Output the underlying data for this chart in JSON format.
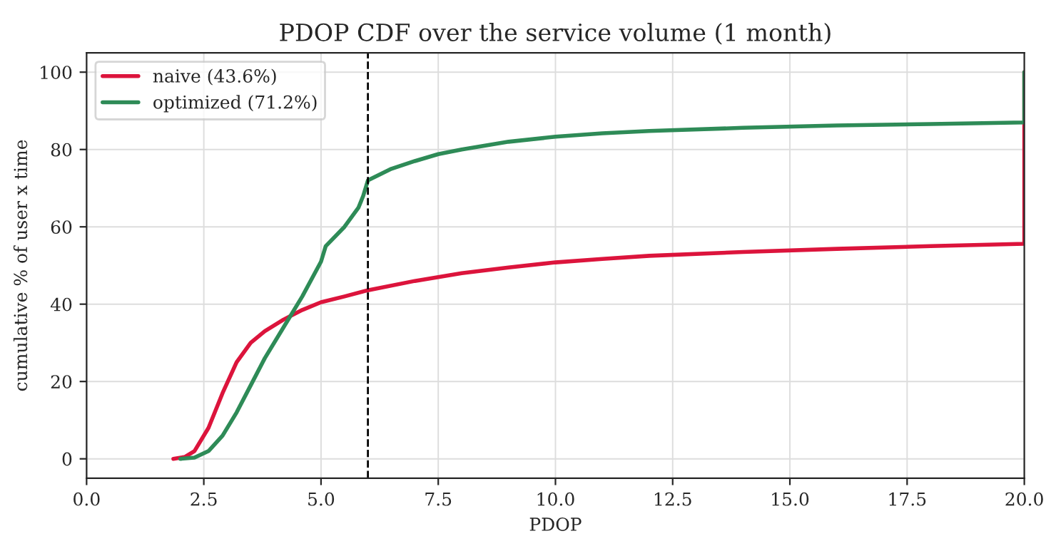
{
  "chart_data": {
    "type": "line",
    "title": "PDOP CDF over the service volume (1 month)",
    "xlabel": "PDOP",
    "ylabel": "cumulative % of user x time",
    "series": [
      {
        "name": "naive (43.6%)",
        "color": "#dc143c",
        "x": [
          1.85,
          2.1,
          2.3,
          2.6,
          2.9,
          3.2,
          3.5,
          3.8,
          4.2,
          4.6,
          5.0,
          5.5,
          6.0,
          7,
          8,
          9,
          10,
          11,
          12,
          14,
          16,
          18,
          20,
          20
        ],
        "values": [
          0,
          0.5,
          2,
          8,
          17,
          25,
          30,
          33,
          36,
          38.5,
          40.5,
          42,
          43.6,
          46,
          48,
          49.5,
          50.8,
          51.7,
          52.5,
          53.5,
          54.3,
          55,
          55.6,
          100
        ]
      },
      {
        "name": "optimized (71.2%)",
        "color": "#2e8b57",
        "x": [
          2.0,
          2.3,
          2.6,
          2.9,
          3.2,
          3.5,
          3.8,
          4.2,
          4.6,
          5.0,
          5.1,
          5.5,
          5.8,
          5.9,
          6.0,
          6.5,
          7,
          7.5,
          8,
          9,
          10,
          11,
          12,
          14,
          16,
          18,
          20,
          20
        ],
        "values": [
          0,
          0.3,
          2,
          6,
          12,
          19,
          26,
          34,
          42,
          51,
          55,
          60,
          65,
          68,
          72,
          75,
          77,
          78.8,
          80,
          82,
          83.3,
          84.2,
          84.8,
          85.6,
          86.2,
          86.6,
          87,
          100
        ]
      }
    ],
    "ref_lines": [
      {
        "axis": "x",
        "value": 6,
        "color": "#000000",
        "line_style": "dashed"
      }
    ],
    "xlim": [
      0,
      20
    ],
    "xticks": [
      {
        "value": 0,
        "label": "0.0"
      },
      2.5,
      {
        "value": 5,
        "label": "5.0"
      },
      7.5,
      {
        "value": 10,
        "label": "10.0"
      },
      12.5,
      {
        "value": 15,
        "label": "15.0"
      },
      17.5,
      {
        "value": 20,
        "label": "20.0"
      }
    ],
    "ylim": [
      -5,
      105
    ],
    "yticks": [
      0,
      20,
      40,
      60,
      80,
      100
    ],
    "grid": true,
    "legend": "top left",
    "marker": "none",
    "line_style": "solid"
  }
}
